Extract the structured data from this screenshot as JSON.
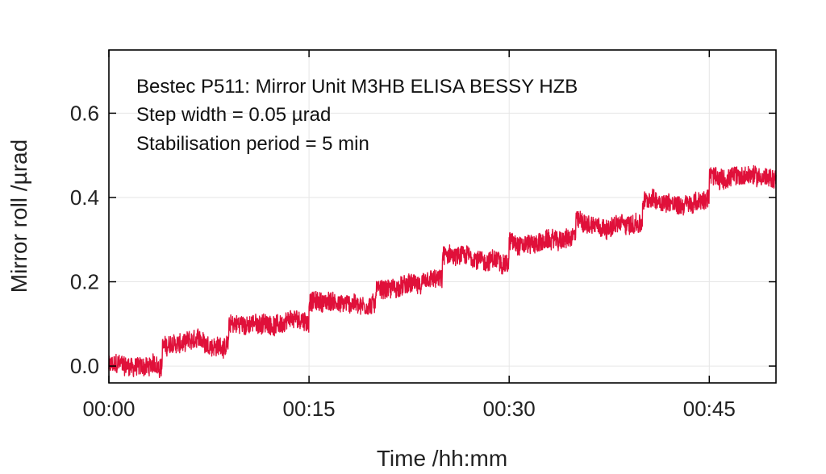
{
  "chart_data": {
    "type": "line",
    "xlabel": "Time /hh:mm",
    "ylabel": "Mirror roll /µrad",
    "xlim_minutes": [
      0,
      50
    ],
    "ylim": [
      -0.04,
      0.75
    ],
    "x_unit": "minutes",
    "x_ticks": [
      {
        "value": 0,
        "label": "00:00"
      },
      {
        "value": 15,
        "label": "00:15"
      },
      {
        "value": 30,
        "label": "00:30"
      },
      {
        "value": 45,
        "label": "00:45"
      }
    ],
    "y_ticks": [
      {
        "value": 0.0,
        "label": "0.0"
      },
      {
        "value": 0.2,
        "label": "0.2"
      },
      {
        "value": 0.4,
        "label": "0.4"
      },
      {
        "value": 0.6,
        "label": "0.6"
      }
    ],
    "annotations": [
      "Bestec P511: Mirror Unit M3HB ELISA BESSY HZB",
      "Step width = 0.05 µrad",
      "Stabilisation period = 5 min"
    ],
    "grid": true,
    "series": [
      {
        "color": "#e0103a",
        "steps": [
          {
            "x_start": 0,
            "x_end": 4,
            "y": 0.0
          },
          {
            "x_start": 4,
            "x_end": 9,
            "y": 0.05
          },
          {
            "x_start": 9,
            "x_end": 15,
            "y": 0.1
          },
          {
            "x_start": 15,
            "x_end": 20,
            "y": 0.15
          },
          {
            "x_start": 20,
            "x_end": 25,
            "y": 0.19
          },
          {
            "x_start": 25,
            "x_end": 30,
            "y": 0.25
          },
          {
            "x_start": 30,
            "x_end": 35,
            "y": 0.3
          },
          {
            "x_start": 35,
            "x_end": 40,
            "y": 0.34
          },
          {
            "x_start": 40,
            "x_end": 45,
            "y": 0.39
          },
          {
            "x_start": 45,
            "x_end": 50,
            "y": 0.45
          }
        ]
      }
    ]
  }
}
